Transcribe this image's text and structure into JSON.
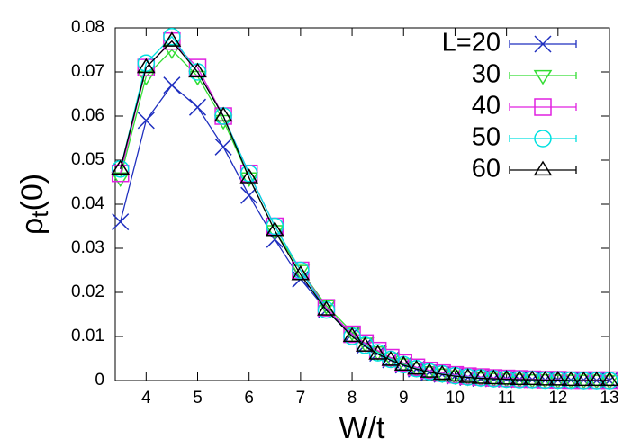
{
  "chart_data": {
    "type": "line",
    "xlabel": "W/t",
    "ylabel": [
      "ρ",
      "t",
      "(0)"
    ],
    "x": [
      3.5,
      4,
      4.5,
      5,
      5.5,
      6,
      6.5,
      7,
      7.5,
      8,
      8.25,
      8.5,
      8.75,
      9,
      9.25,
      9.5,
      9.75,
      10,
      10.25,
      10.5,
      10.75,
      11,
      11.25,
      11.5,
      11.75,
      12,
      12.25,
      12.5,
      12.75,
      13
    ],
    "series": [
      {
        "name": "L=20",
        "color": "#1f2fbf",
        "marker": "cross",
        "values": [
          0.036,
          0.059,
          0.067,
          0.062,
          0.053,
          0.042,
          0.032,
          0.023,
          0.016,
          0.0105,
          0.008,
          0.0062,
          0.0047,
          0.0035,
          0.0026,
          0.0019,
          0.0014,
          0.001,
          0.0007,
          0.0005,
          0.0004,
          0.0003,
          0.0002,
          0.0002,
          0.0001,
          0.0001,
          0.0001,
          0.0001,
          0,
          0
        ]
      },
      {
        "name": "30",
        "color": "#33dd33",
        "marker": "triangle-down",
        "values": [
          0.046,
          0.069,
          0.075,
          0.069,
          0.059,
          0.046,
          0.034,
          0.025,
          0.017,
          0.011,
          0.0085,
          0.0065,
          0.005,
          0.0038,
          0.0028,
          0.002,
          0.0015,
          0.0011,
          0.0008,
          0.0006,
          0.0005,
          0.0004,
          0.0003,
          0.0002,
          0.0002,
          0.0001,
          0.0001,
          0.0001,
          0.0001,
          0
        ]
      },
      {
        "name": "40",
        "color": "#e020e0",
        "marker": "square",
        "values": [
          0.047,
          0.071,
          0.077,
          0.071,
          0.06,
          0.047,
          0.035,
          0.025,
          0.0165,
          0.0105,
          0.0085,
          0.0068,
          0.0052,
          0.004,
          0.003,
          0.0023,
          0.0017,
          0.0013,
          0.001,
          0.0008,
          0.0006,
          0.0005,
          0.0004,
          0.0003,
          0.0002,
          0.0002,
          0.0001,
          0.0001,
          0.0001,
          0.0001
        ]
      },
      {
        "name": "50",
        "color": "#00e0e0",
        "marker": "circle",
        "values": [
          0.048,
          0.072,
          0.078,
          0.07,
          0.06,
          0.047,
          0.035,
          0.025,
          0.016,
          0.01,
          0.008,
          0.0063,
          0.0048,
          0.0036,
          0.0027,
          0.002,
          0.0015,
          0.0011,
          0.0008,
          0.0006,
          0.0004,
          0.0003,
          0.0002,
          0.0002,
          0.0001,
          0.0001,
          0.0001,
          0,
          0,
          0
        ]
      },
      {
        "name": "60",
        "color": "#000000",
        "marker": "triangle-up",
        "values": [
          0.048,
          0.071,
          0.077,
          0.07,
          0.06,
          0.046,
          0.034,
          0.024,
          0.016,
          0.01,
          0.0078,
          0.006,
          0.0046,
          0.0035,
          0.0026,
          0.0019,
          0.0014,
          0.001,
          0.0007,
          0.0005,
          0.0004,
          0.0003,
          0.0002,
          0.0002,
          0.0001,
          0.0001,
          0,
          0,
          0,
          0
        ]
      }
    ],
    "xlim": [
      3.4,
      13
    ],
    "ylim": [
      0,
      0.08
    ],
    "xticks": [
      4,
      5,
      6,
      7,
      8,
      9,
      10,
      11,
      12,
      13
    ],
    "yticks": [
      0,
      0.01,
      0.02,
      0.03,
      0.04,
      0.05,
      0.06,
      0.07,
      0.08
    ],
    "grid": false,
    "legend": "upper right"
  }
}
